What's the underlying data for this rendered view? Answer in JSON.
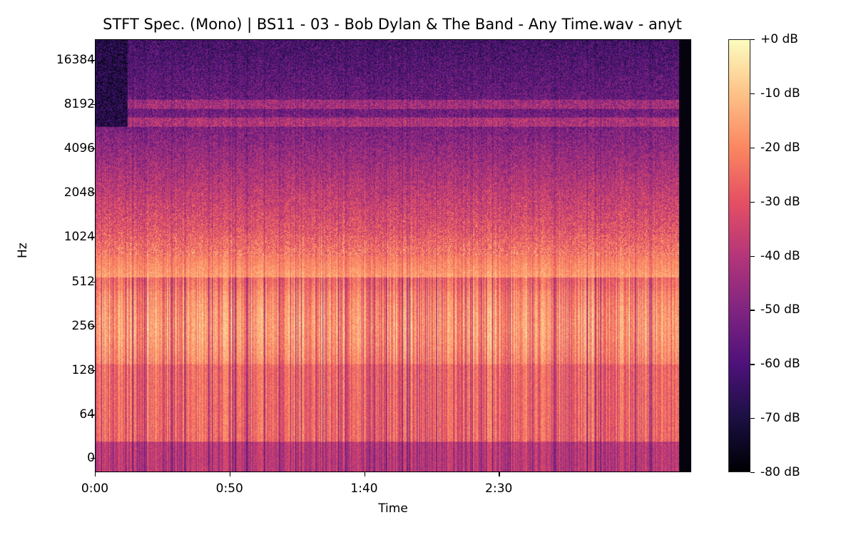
{
  "chart_data": {
    "type": "heatmap",
    "subtype": "stft-spectrogram",
    "title": "STFT Spec. (Mono) | BS11 - 03 - Bob Dylan & The Band - Any Time.wav - anyt",
    "xlabel": "Time",
    "ylabel": "Hz",
    "x_ticks": [
      {
        "label": "0:00",
        "seconds": 0
      },
      {
        "label": "0:50",
        "seconds": 50
      },
      {
        "label": "1:40",
        "seconds": 100
      },
      {
        "label": "2:30",
        "seconds": 150
      }
    ],
    "x_range_seconds": [
      0,
      222
    ],
    "y_scale": "log2",
    "y_ticks": [
      "16384",
      "8192",
      "4096",
      "2048",
      "1024",
      "512",
      "256",
      "128",
      "64",
      "0"
    ],
    "colorbar": {
      "colormap": "magma",
      "ticks": [
        "+0 dB",
        "-10 dB",
        "-20 dB",
        "-30 dB",
        "-40 dB",
        "-50 dB",
        "-60 dB",
        "-70 dB",
        "-80 dB"
      ],
      "range_db": [
        -80,
        0
      ]
    },
    "observations": {
      "low_band_energy_db": "approximately -5 to -25 dB between 64 and 512 Hz",
      "high_band_energy_db": "approximately -55 to -75 dB above 8192 Hz",
      "intro_silence_high_freq_seconds": [
        0,
        7
      ],
      "hf_harmonic_bands_hz": [
        6500,
        8200
      ],
      "audio_end_seconds": 220
    },
    "grid": false,
    "legend": "colorbar-right"
  }
}
